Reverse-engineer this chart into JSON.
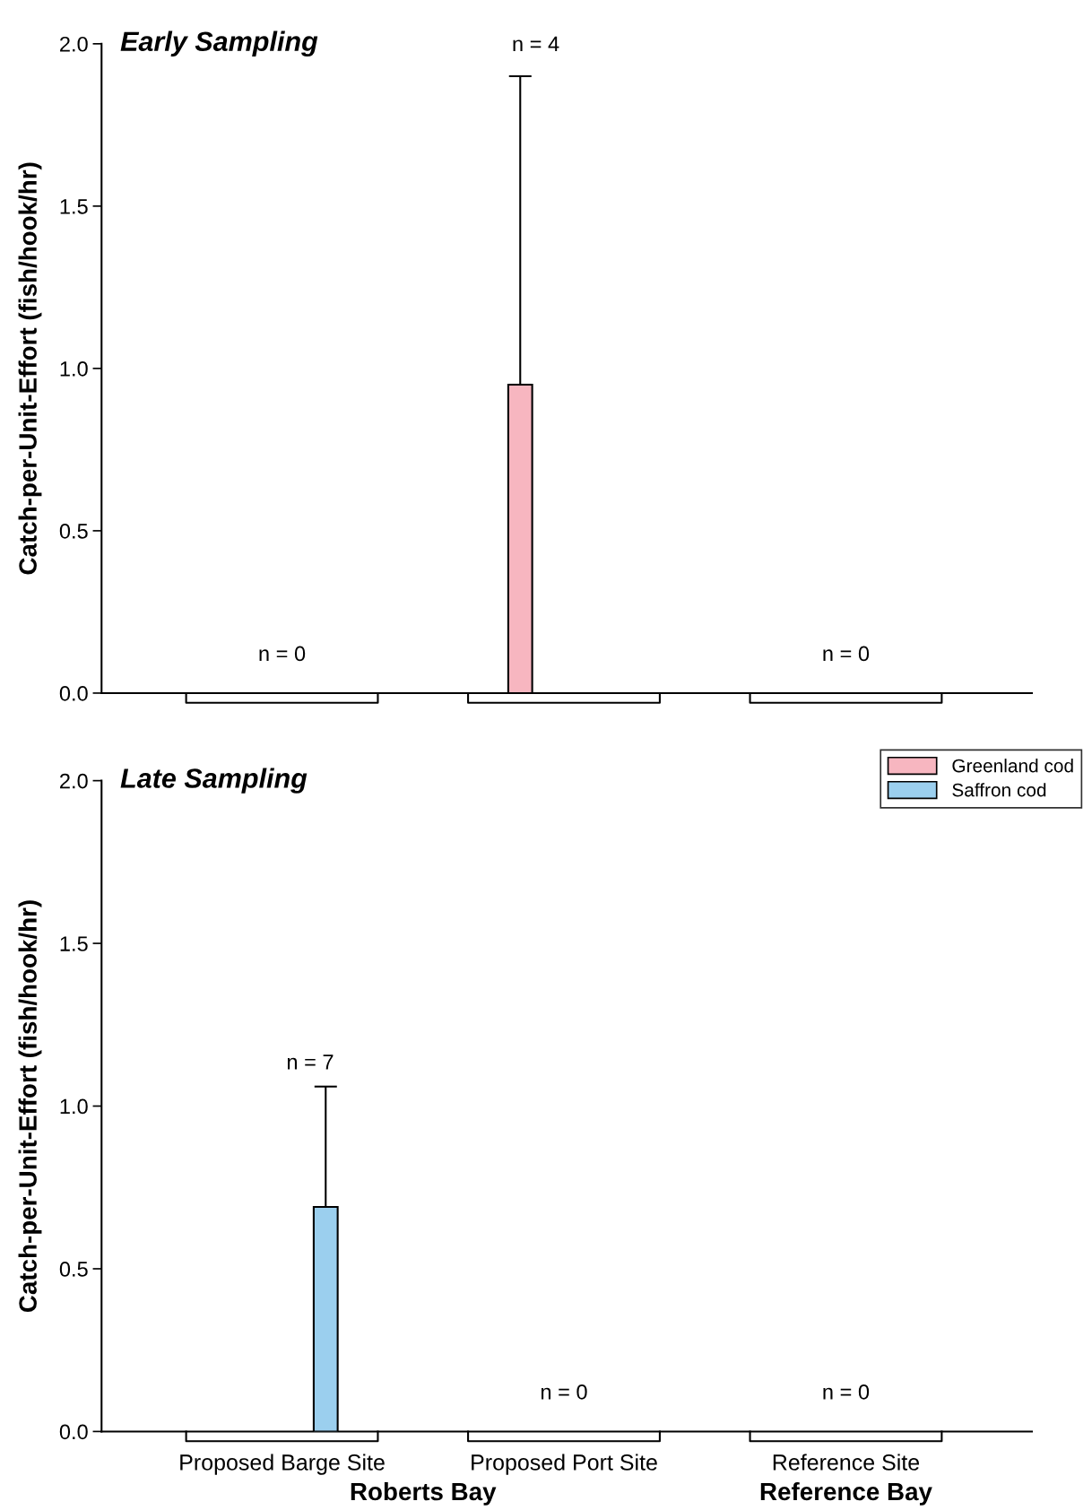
{
  "chart_data": [
    {
      "type": "bar",
      "title": "Early Sampling",
      "ylabel": "Catch-per-Unit-Effort (fish/hook/hr)",
      "categories": [
        null,
        null,
        null
      ],
      "series": [
        {
          "name": "Greenland cod",
          "color": "#f7b6c0",
          "values": [
            0,
            0.95,
            0
          ],
          "errors": [
            null,
            [
              0.95,
              1.9
            ],
            null
          ]
        },
        {
          "name": "Saffron cod",
          "color": "#9bcfee",
          "values": [
            0,
            0,
            0
          ],
          "errors": [
            null,
            null,
            null
          ]
        }
      ],
      "ylim": [
        0,
        2
      ],
      "yticks": [
        {
          "value": 0,
          "label": "0.0"
        },
        {
          "value": 0.5,
          "label": "0.5"
        },
        {
          "value": 1,
          "label": "1.0"
        },
        {
          "value": 1.5,
          "label": "1.5"
        },
        {
          "value": 2,
          "label": "2.0"
        }
      ],
      "tick_labels": "y",
      "grid": false,
      "legend": "bottom right",
      "annotations": [
        "n = 0",
        "n = 4",
        "n = 0"
      ]
    },
    {
      "type": "bar",
      "title": "Late Sampling",
      "ylabel": "Catch-per-Unit-Effort (fish/hook/hr)",
      "categories": [
        "Proposed Barge Site",
        "Proposed Port Site",
        "Reference Site"
      ],
      "series": [
        {
          "color": "#f7b6c0",
          "values": [
            0,
            0,
            0
          ],
          "errors": [
            null,
            null,
            null
          ]
        },
        {
          "color": "#9bcfee",
          "values": [
            0.69,
            0,
            0
          ],
          "errors": [
            [
              0.69,
              1.06
            ],
            null,
            null
          ]
        }
      ],
      "ylim": [
        0,
        2
      ],
      "yticks": [
        {
          "value": 0,
          "label": "0.0"
        },
        {
          "value": 0.5,
          "label": "0.5"
        },
        {
          "value": 1,
          "label": "1.0"
        },
        {
          "value": 1.5,
          "label": "1.5"
        },
        {
          "value": 2,
          "label": "2.0"
        }
      ],
      "grid": false,
      "annotations": [
        "n = 7",
        "n = 0",
        "n = 0",
        "Roberts Bay",
        "Reference Bay"
      ]
    }
  ]
}
